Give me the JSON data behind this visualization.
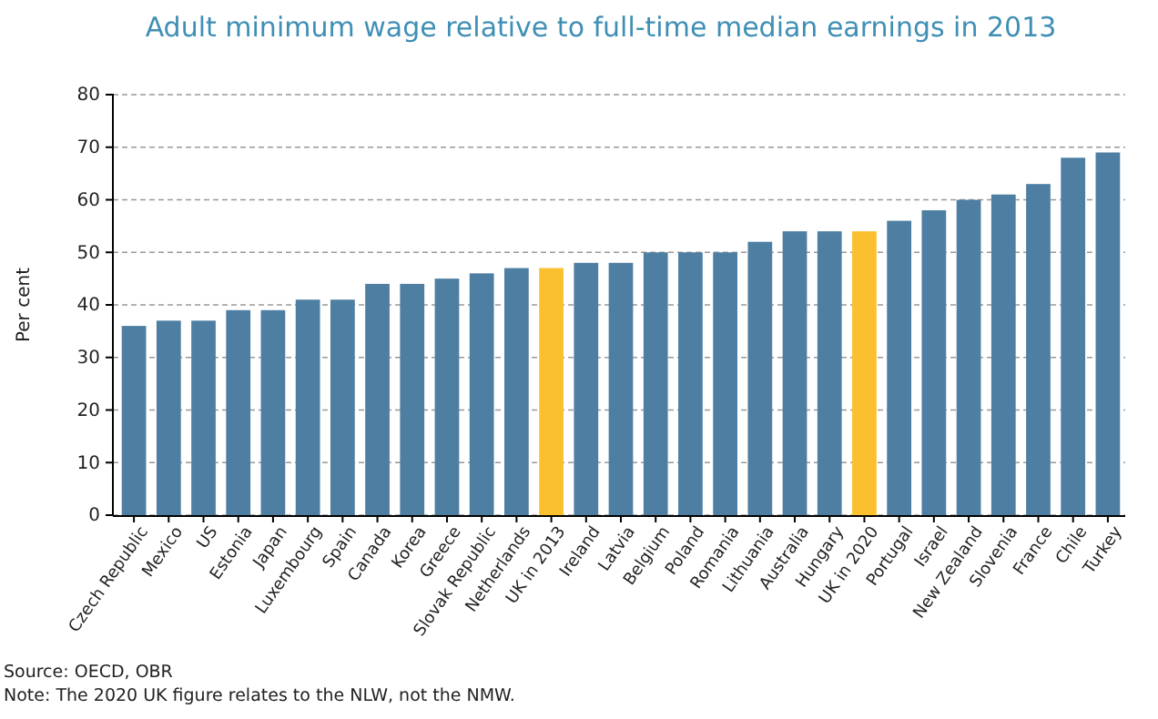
{
  "chart_data": {
    "type": "bar",
    "title": "Adult minimum wage relative to full-time median earnings in 2013",
    "ylabel": "Per cent",
    "categories": [
      "Czech Republic",
      "Mexico",
      "US",
      "Estonia",
      "Japan",
      "Luxembourg",
      "Spain",
      "Canada",
      "Korea",
      "Greece",
      "Slovak Republic",
      "Netherlands",
      "UK in 2013",
      "Ireland",
      "Latvia",
      "Belgium",
      "Poland",
      "Romania",
      "Lithuania",
      "Australia",
      "Hungary",
      "UK in 2020",
      "Portugal",
      "Israel",
      "New Zealand",
      "Slovenia",
      "France",
      "Chile",
      "Turkey"
    ],
    "values": [
      36,
      37,
      37,
      39,
      39,
      41,
      41,
      44,
      44,
      45,
      46,
      47,
      47,
      48,
      48,
      50,
      50,
      50,
      52,
      54,
      54,
      54,
      56,
      58,
      60,
      61,
      63,
      68,
      69
    ],
    "colors": [
      "#4e7fa3",
      "#4e7fa3",
      "#4e7fa3",
      "#4e7fa3",
      "#4e7fa3",
      "#4e7fa3",
      "#4e7fa3",
      "#4e7fa3",
      "#4e7fa3",
      "#4e7fa3",
      "#4e7fa3",
      "#4e7fa3",
      "#fbc02d",
      "#4e7fa3",
      "#4e7fa3",
      "#4e7fa3",
      "#4e7fa3",
      "#4e7fa3",
      "#4e7fa3",
      "#4e7fa3",
      "#4e7fa3",
      "#fbc02d",
      "#4e7fa3",
      "#4e7fa3",
      "#4e7fa3",
      "#4e7fa3",
      "#4e7fa3",
      "#4e7fa3",
      "#4e7fa3"
    ],
    "ylim": [
      0,
      80
    ],
    "yticks": [
      0,
      10,
      20,
      30,
      40,
      50,
      60,
      70,
      80
    ],
    "grid": "y",
    "annotations": [
      "Source: OECD, OBR",
      "Note: The 2020 UK figure relates to the NLW, not the NMW."
    ]
  }
}
